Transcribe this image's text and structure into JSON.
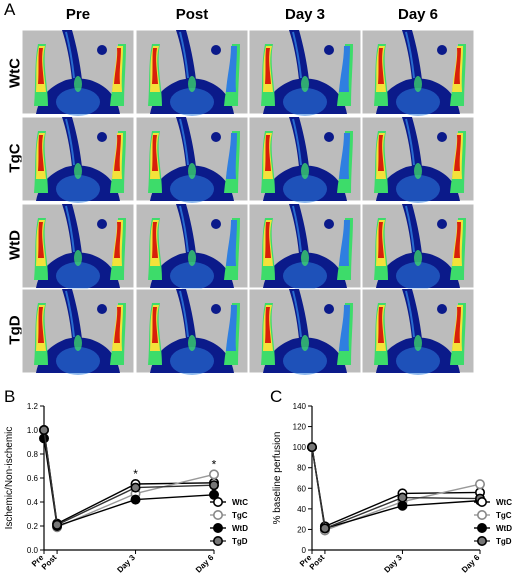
{
  "figure_labels": {
    "a": "A",
    "b": "B",
    "c": "C"
  },
  "columns": [
    "Pre",
    "Post",
    "Day 3",
    "Day 6"
  ],
  "rows": [
    "WtC",
    "TgC",
    "WtD",
    "TgD"
  ],
  "colors": {
    "image_bg": "#bcbcbc",
    "perfusion_low": "#0b1a8a",
    "perfusion_mid": "#2f7fe0",
    "perfusion_green": "#3ddc6a",
    "perfusion_yellow": "#f4e23a",
    "perfusion_high": "#d8200a"
  },
  "chart_data": [
    {
      "type": "line",
      "panel": "B",
      "categories": [
        "Pre",
        "Post",
        "Day 3",
        "Day 6"
      ],
      "x": [
        0,
        1,
        7,
        13
      ],
      "ylabel": "Ischemic/Non-ischemic",
      "xlabel": "",
      "ylim": [
        0,
        1.2
      ],
      "yticks": [
        "0.0",
        "0.2",
        "0.4",
        "0.6",
        "0.8",
        "1.0",
        "1.2"
      ],
      "annotations": [
        {
          "category": "Day 3",
          "text": "*"
        },
        {
          "category": "Day 6",
          "text": "*"
        }
      ],
      "legend": "bottom-right",
      "series": [
        {
          "name": "WtC",
          "values": [
            1.0,
            0.22,
            0.55,
            0.56
          ],
          "marker": "open-circle-black"
        },
        {
          "name": "TgC",
          "values": [
            1.0,
            0.19,
            0.47,
            0.63
          ],
          "marker": "open-circle-grey"
        },
        {
          "name": "WtD",
          "values": [
            0.93,
            0.2,
            0.42,
            0.46
          ],
          "marker": "filled-circle-black"
        },
        {
          "name": "TgD",
          "values": [
            1.0,
            0.21,
            0.52,
            0.54
          ],
          "marker": "grey-filled-circle"
        }
      ]
    },
    {
      "type": "line",
      "panel": "C",
      "categories": [
        "Pre",
        "Post",
        "Day 3",
        "Day 6"
      ],
      "x": [
        0,
        1,
        7,
        13
      ],
      "ylabel": "% baseline perfusion",
      "xlabel": "",
      "ylim": [
        0,
        140
      ],
      "yticks": [
        "0",
        "20",
        "40",
        "60",
        "80",
        "100",
        "120",
        "140"
      ],
      "legend": "bottom-right",
      "series": [
        {
          "name": "WtC",
          "values": [
            100,
            23,
            55,
            56
          ],
          "marker": "open-circle-black"
        },
        {
          "name": "TgC",
          "values": [
            100,
            19,
            47,
            64
          ],
          "marker": "open-circle-grey"
        },
        {
          "name": "WtD",
          "values": [
            100,
            21,
            43,
            48
          ],
          "marker": "filled-circle-black"
        },
        {
          "name": "TgD",
          "values": [
            100,
            21,
            51,
            50
          ],
          "marker": "grey-filled-circle"
        }
      ]
    }
  ]
}
